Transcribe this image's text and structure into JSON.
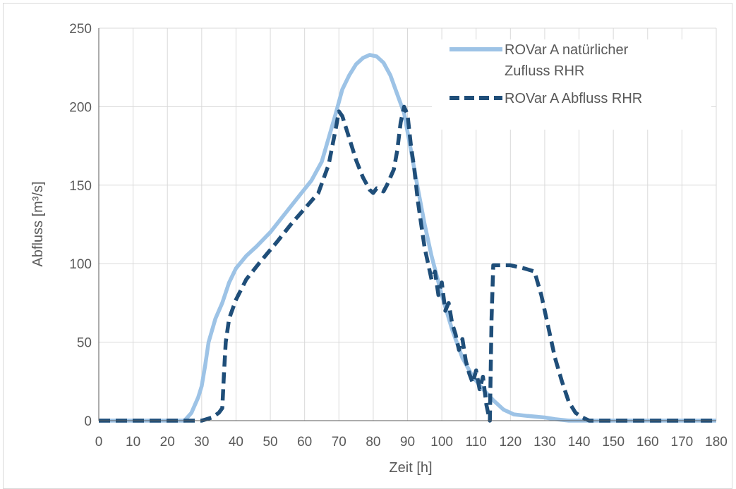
{
  "chart_data": {
    "type": "line",
    "xlabel": "Zeit [h]",
    "ylabel": "Abfluss [m³/s]",
    "xlim": [
      0,
      180
    ],
    "ylim": [
      0,
      250
    ],
    "xticks": [
      0,
      10,
      20,
      30,
      40,
      50,
      60,
      70,
      80,
      90,
      100,
      110,
      120,
      130,
      140,
      150,
      160,
      170,
      180
    ],
    "yticks": [
      0,
      50,
      100,
      150,
      200,
      250
    ],
    "grid": true,
    "legend_position": "top-right",
    "series": [
      {
        "name_lines": [
          "ROVar A natürlicher",
          "Zufluss RHR"
        ],
        "style": "solid",
        "color": "#9dc3e6",
        "points": [
          [
            0,
            0
          ],
          [
            25,
            0
          ],
          [
            27,
            5
          ],
          [
            29,
            15
          ],
          [
            30,
            22
          ],
          [
            31,
            35
          ],
          [
            32,
            50
          ],
          [
            34,
            65
          ],
          [
            36,
            75
          ],
          [
            38,
            88
          ],
          [
            40,
            97
          ],
          [
            43,
            105
          ],
          [
            46,
            111
          ],
          [
            50,
            120
          ],
          [
            54,
            131
          ],
          [
            58,
            142
          ],
          [
            62,
            153
          ],
          [
            65,
            165
          ],
          [
            67,
            180
          ],
          [
            69,
            195
          ],
          [
            71,
            211
          ],
          [
            73,
            220
          ],
          [
            75,
            227
          ],
          [
            77,
            231
          ],
          [
            79,
            233
          ],
          [
            81,
            232
          ],
          [
            83,
            228
          ],
          [
            85,
            220
          ],
          [
            87,
            208
          ],
          [
            89,
            196
          ],
          [
            91,
            172
          ],
          [
            93,
            148
          ],
          [
            95,
            125
          ],
          [
            97,
            105
          ],
          [
            100,
            80
          ],
          [
            103,
            58
          ],
          [
            106,
            40
          ],
          [
            109,
            28
          ],
          [
            112,
            20
          ],
          [
            115,
            13
          ],
          [
            118,
            7
          ],
          [
            121,
            4
          ],
          [
            125,
            3
          ],
          [
            130,
            2
          ],
          [
            133,
            1
          ],
          [
            137,
            0
          ],
          [
            180,
            0
          ]
        ]
      },
      {
        "name_lines": [
          "ROVar A Abfluss RHR"
        ],
        "style": "dashed",
        "color": "#1f4e79",
        "points": [
          [
            0,
            0
          ],
          [
            30,
            0
          ],
          [
            33,
            2
          ],
          [
            35,
            5
          ],
          [
            36,
            8
          ],
          [
            36.5,
            30
          ],
          [
            37,
            50
          ],
          [
            38,
            65
          ],
          [
            40,
            77
          ],
          [
            43,
            90
          ],
          [
            47,
            101
          ],
          [
            52,
            114
          ],
          [
            56,
            125
          ],
          [
            60,
            135
          ],
          [
            64,
            145
          ],
          [
            67,
            163
          ],
          [
            69,
            185
          ],
          [
            70,
            197
          ],
          [
            71,
            194
          ],
          [
            73,
            180
          ],
          [
            75,
            166
          ],
          [
            77,
            155
          ],
          [
            79,
            147
          ],
          [
            80,
            145
          ],
          [
            81,
            148
          ],
          [
            83,
            146
          ],
          [
            84,
            150
          ],
          [
            86,
            160
          ],
          [
            87,
            172
          ],
          [
            88,
            190
          ],
          [
            89,
            200
          ],
          [
            90,
            195
          ],
          [
            91,
            175
          ],
          [
            92,
            160
          ],
          [
            93,
            140
          ],
          [
            94,
            125
          ],
          [
            95,
            110
          ],
          [
            96,
            100
          ],
          [
            97,
            90
          ],
          [
            98,
            95
          ],
          [
            99,
            80
          ],
          [
            100,
            88
          ],
          [
            101,
            70
          ],
          [
            102,
            75
          ],
          [
            103,
            62
          ],
          [
            104,
            55
          ],
          [
            105,
            45
          ],
          [
            106,
            52
          ],
          [
            107,
            38
          ],
          [
            108,
            30
          ],
          [
            109,
            24
          ],
          [
            110,
            32
          ],
          [
            111,
            20
          ],
          [
            112,
            28
          ],
          [
            113,
            10
          ],
          [
            113.5,
            5
          ],
          [
            114,
            0
          ],
          [
            114.5,
            65
          ],
          [
            115,
            99
          ],
          [
            120,
            99
          ],
          [
            124,
            97
          ],
          [
            127,
            95
          ],
          [
            129,
            80
          ],
          [
            131,
            60
          ],
          [
            133,
            40
          ],
          [
            135,
            25
          ],
          [
            137,
            12
          ],
          [
            139,
            5
          ],
          [
            141,
            2
          ],
          [
            143,
            0
          ],
          [
            180,
            0
          ]
        ]
      }
    ]
  }
}
